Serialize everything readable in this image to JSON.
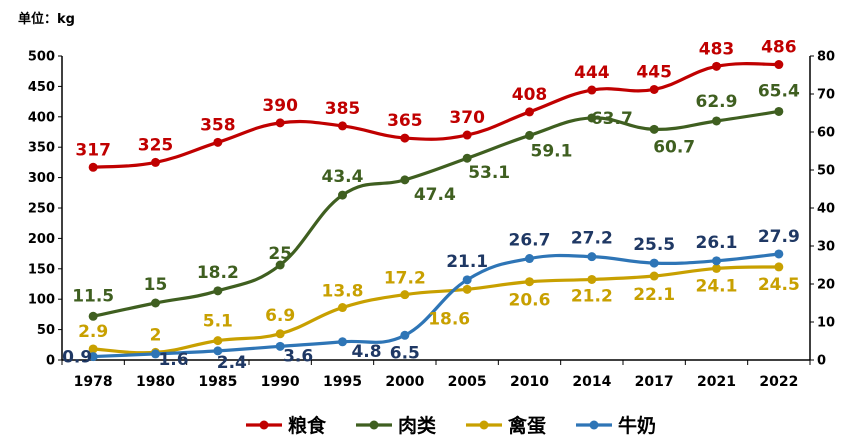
{
  "chart_data": {
    "type": "line",
    "unit_label": "单位：kg",
    "categories": [
      "1978",
      "1980",
      "1985",
      "1990",
      "1995",
      "2000",
      "2005",
      "2010",
      "2014",
      "2017",
      "2021",
      "2022"
    ],
    "left_axis": {
      "ylim": [
        0,
        500
      ],
      "ticks": [
        "0",
        "50",
        "100",
        "150",
        "200",
        "250",
        "300",
        "350",
        "400",
        "450",
        "500"
      ]
    },
    "right_axis": {
      "ylim": [
        0,
        80
      ],
      "ticks": [
        "0",
        "10",
        "20",
        "30",
        "40",
        "50",
        "60",
        "70",
        "80"
      ]
    },
    "series": [
      {
        "name": "粮食",
        "axis": "left",
        "color": "#c00000",
        "values": [
          317,
          325,
          358,
          390,
          385,
          365,
          370,
          408,
          444,
          445,
          483,
          486
        ],
        "labels": [
          "317",
          "325",
          "358",
          "390",
          "385",
          "365",
          "370",
          "408",
          "444",
          "445",
          "483",
          "486"
        ]
      },
      {
        "name": "肉类",
        "axis": "right",
        "color": "#3f5f20",
        "values": [
          11.5,
          15,
          18.2,
          25,
          43.4,
          47.4,
          53.1,
          59.1,
          63.7,
          60.7,
          62.9,
          65.4
        ],
        "labels": [
          "11.5",
          "15",
          "18.2",
          "25",
          "43.4",
          "47.4",
          "53.1",
          "59.1",
          "63.7",
          "60.7",
          "62.9",
          "65.4"
        ]
      },
      {
        "name": "禽蛋",
        "axis": "right",
        "color": "#c8a000",
        "values": [
          2.9,
          2,
          5.1,
          6.9,
          13.8,
          17.2,
          18.6,
          20.6,
          21.2,
          22.1,
          24.1,
          24.5
        ],
        "labels": [
          "2.9",
          "2",
          "5.1",
          "6.9",
          "13.8",
          "17.2",
          "18.6",
          "20.6",
          "21.2",
          "22.1",
          "24.1",
          "24.5"
        ]
      },
      {
        "name": "牛奶",
        "axis": "right",
        "color": "#2e75b6",
        "values": [
          0.9,
          1.6,
          2.4,
          3.6,
          4.8,
          6.5,
          21.1,
          26.7,
          27.2,
          25.5,
          26.1,
          27.9
        ],
        "labels": [
          "0.9",
          "1.6",
          "2.4",
          "3.6",
          "4.8",
          "6.5",
          "21.1",
          "26.7",
          "27.2",
          "25.5",
          "26.1",
          "27.9"
        ]
      }
    ],
    "legend_position": "bottom-center",
    "grid": false
  }
}
